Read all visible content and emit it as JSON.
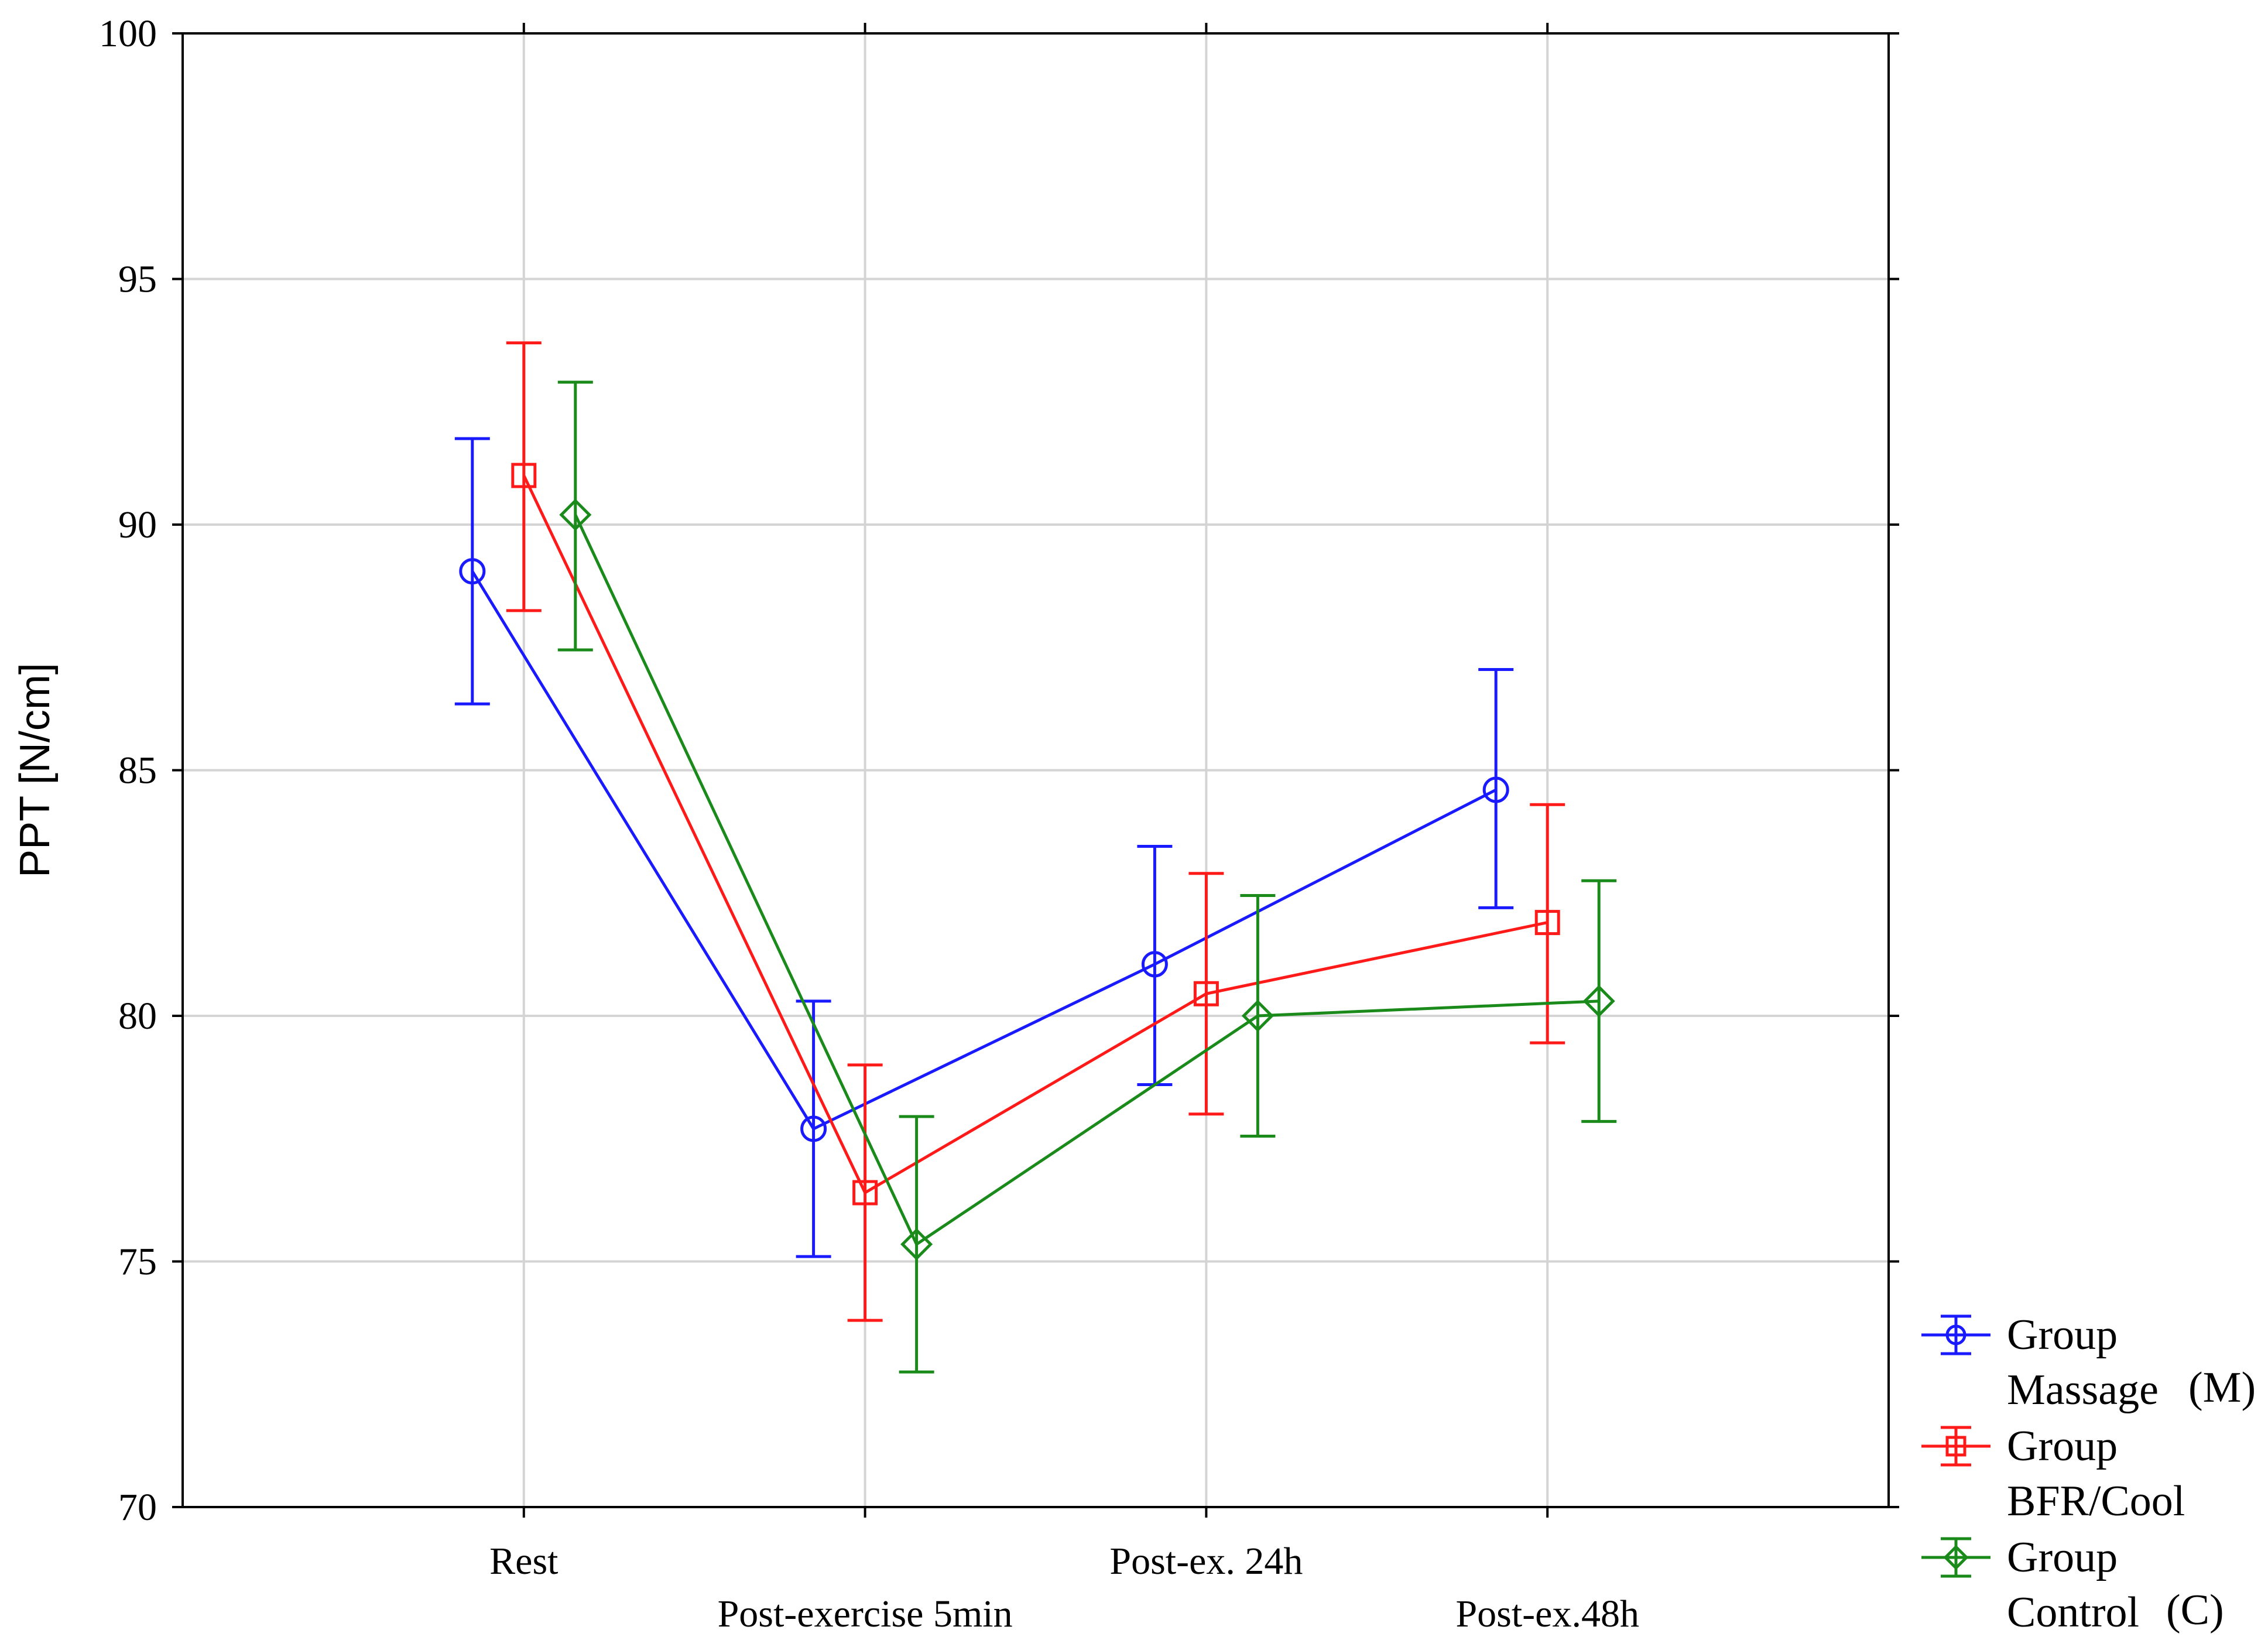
{
  "chart_data": {
    "type": "line",
    "title": "",
    "xlabel": "",
    "ylabel": "PPT [N/cm]",
    "ylim": [
      70,
      100
    ],
    "yticks": [
      "70",
      "75",
      "80",
      "85",
      "90",
      "95",
      "100"
    ],
    "grid": true,
    "legend_position": "right-bottom-outside",
    "categories": [
      "Rest",
      "Post-exercise 5min",
      "Post-ex. 24h",
      "Post-ex.48h"
    ],
    "series": [
      {
        "name_line1": "Group",
        "name_line2": "Massage",
        "name_suffix": "(M)",
        "color": "#1a1aff",
        "marker": "circle",
        "values": [
          89.05,
          77.7,
          81.05,
          84.6
        ],
        "err_low": [
          86.35,
          75.1,
          78.6,
          82.2
        ],
        "err_high": [
          91.75,
          80.3,
          83.45,
          87.05
        ]
      },
      {
        "name_line1": "Group",
        "name_line2": "BFR/Cool",
        "name_suffix": "",
        "color": "#ff1a1a",
        "marker": "square",
        "values": [
          91.0,
          76.4,
          80.45,
          81.9
        ],
        "err_low": [
          88.25,
          73.8,
          78.0,
          79.45
        ],
        "err_high": [
          93.7,
          79.0,
          82.9,
          84.3
        ]
      },
      {
        "name_line1": "Group",
        "name_line2": "Control",
        "name_suffix": "(C)",
        "color": "#1a8a1a",
        "marker": "diamond",
        "values": [
          90.2,
          75.35,
          80.0,
          80.3
        ],
        "err_low": [
          87.45,
          72.75,
          77.55,
          77.85
        ],
        "err_high": [
          92.9,
          77.95,
          82.45,
          82.75
        ]
      }
    ]
  }
}
